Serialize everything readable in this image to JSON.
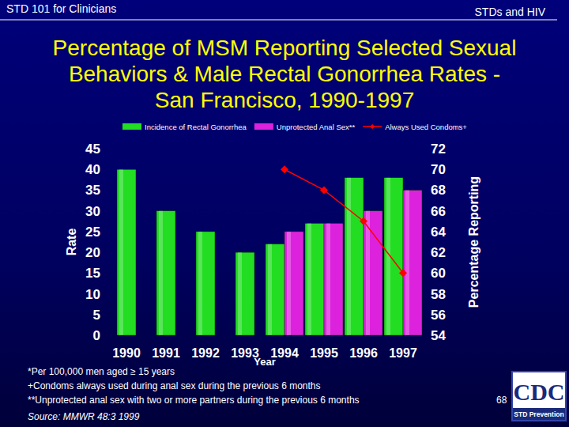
{
  "header": {
    "left": "STD 101 for Clinicians",
    "right": "STDs and HIV"
  },
  "chart_data": {
    "type": "bar",
    "title": "Percentage of MSM Reporting Selected Sexual Behaviors & Male Rectal Gonorrhea Rates - San Francisco, 1990-1997",
    "xlabel": "Year",
    "ylabel": "Rate",
    "y2label": "Percentage Reporting",
    "categories": [
      "1990",
      "1991",
      "1992",
      "1993",
      "1994",
      "1995",
      "1996",
      "1997"
    ],
    "series": [
      {
        "name": "Incidence of Rectal Gonorrhea",
        "type": "bar",
        "color": "#22dd22",
        "values": [
          40,
          30,
          25,
          20,
          22,
          27,
          38,
          38
        ]
      },
      {
        "name": "Unprotected Anal Sex**",
        "type": "bar",
        "color": "#dd22dd",
        "axis": "y2",
        "values": [
          null,
          null,
          null,
          null,
          64,
          64.8,
          66,
          68
        ]
      },
      {
        "name": "Always Used Condoms+",
        "type": "line",
        "color": "#ff0000",
        "axis": "y2",
        "marker": "diamond",
        "values": [
          null,
          null,
          null,
          null,
          70,
          68,
          65,
          60
        ]
      }
    ],
    "ylim": [
      0,
      45
    ],
    "yticks": [
      0,
      5,
      10,
      15,
      20,
      25,
      30,
      35,
      40,
      45
    ],
    "y2lim": [
      54,
      72
    ],
    "y2ticks": [
      54,
      56,
      58,
      60,
      62,
      64,
      66,
      68,
      70,
      72
    ],
    "grid": false,
    "legend": "top"
  },
  "footnotes": [
    "*Per 100,000 men aged ≥ 15 years",
    "+Condoms always used during anal sex during the previous 6 months",
    "**Unprotected anal sex with two or more partners during the previous 6 months"
  ],
  "source": "Source: MMWR 48:3 1999",
  "page_number": "68",
  "logo": {
    "text": "CDC",
    "subtitle": "STD Prevention"
  }
}
